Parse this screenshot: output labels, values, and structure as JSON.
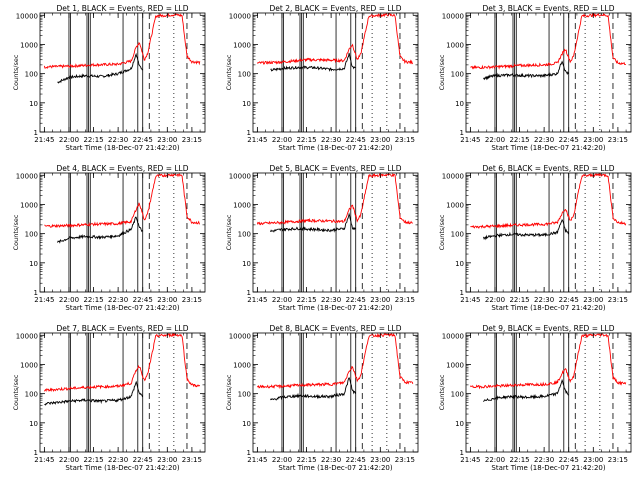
{
  "figure": {
    "xlabel": "Start Time (18-Dec-07 21:42:20)",
    "ylabel": "Counts/sec",
    "colors": {
      "events": "#000000",
      "lld": "#ff0000",
      "axes": "#000000"
    }
  },
  "chart_data": {
    "type": "line",
    "layout": "3x3 grid",
    "yscale": "log",
    "ylim": [
      1,
      12000
    ],
    "xlim": [
      "21:42:20",
      "23:23:00"
    ],
    "x_ticks": [
      "21:45",
      "22:00",
      "22:15",
      "22:30",
      "22:45",
      "23:00",
      "23:15"
    ],
    "y_ticks": [
      "1",
      "10",
      "100",
      "1000",
      "10000"
    ],
    "xlabel": "Start Time (18-Dec-07 21:42:20)",
    "ylabel": "Counts/sec",
    "solid_vertical_lines": [
      "22:00",
      "22:01",
      "22:11",
      "22:12",
      "22:13",
      "22:33",
      "22:42",
      "22:45"
    ],
    "dashed_vertical_lines": [
      "22:49",
      "23:12"
    ],
    "dotted_vertical_lines": [
      "22:55",
      "23:04"
    ],
    "panels": [
      {
        "title": "Det 1, BLACK = Events, RED = LLD",
        "series": [
          {
            "name": "BLACK = Events",
            "color": "#000000",
            "x": [
              "21:53",
              "22:00",
              "22:10",
              "22:20",
              "22:30",
              "22:38",
              "22:41",
              "22:43",
              "22:45"
            ],
            "y": [
              50,
              75,
              85,
              80,
              100,
              150,
              480,
              180,
              140
            ]
          },
          {
            "name": "RED = LLD",
            "color": "#ff0000",
            "x": [
              "21:45",
              "22:00",
              "22:15",
              "22:30",
              "22:38",
              "22:41",
              "22:43",
              "22:46",
              "22:48",
              "22:53",
              "23:05",
              "23:09",
              "23:12",
              "23:15",
              "23:20"
            ],
            "y": [
              170,
              180,
              200,
              210,
              270,
              800,
              1200,
              300,
              500,
              9500,
              10500,
              9800,
              400,
              260,
              240
            ]
          }
        ]
      },
      {
        "title": "Det 2, BLACK = Events, RED = LLD",
        "series": [
          {
            "name": "BLACK = Events",
            "color": "#000000",
            "x": [
              "21:53",
              "22:00",
              "22:10",
              "22:20",
              "22:30",
              "22:38",
              "22:41",
              "22:43",
              "22:45"
            ],
            "y": [
              130,
              150,
              165,
              160,
              140,
              150,
              480,
              170,
              150
            ]
          },
          {
            "name": "RED = LLD",
            "color": "#ff0000",
            "x": [
              "21:45",
              "22:00",
              "22:15",
              "22:30",
              "22:38",
              "22:41",
              "22:43",
              "22:46",
              "22:48",
              "22:53",
              "23:05",
              "23:09",
              "23:12",
              "23:15",
              "23:20"
            ],
            "y": [
              230,
              250,
              300,
              290,
              280,
              700,
              1000,
              300,
              450,
              9500,
              10500,
              9800,
              380,
              260,
              240
            ]
          }
        ]
      },
      {
        "title": "Det 3, BLACK = Events, RED = LLD",
        "series": [
          {
            "name": "BLACK = Events",
            "color": "#000000",
            "x": [
              "21:53",
              "22:00",
              "22:10",
              "22:20",
              "22:30",
              "22:38",
              "22:41",
              "22:43",
              "22:45"
            ],
            "y": [
              70,
              85,
              90,
              85,
              85,
              100,
              280,
              120,
              95
            ]
          },
          {
            "name": "RED = LLD",
            "color": "#ff0000",
            "x": [
              "21:45",
              "22:00",
              "22:15",
              "22:30",
              "22:38",
              "22:41",
              "22:43",
              "22:46",
              "22:48",
              "22:53",
              "23:05",
              "23:09",
              "23:12",
              "23:15",
              "23:20"
            ],
            "y": [
              160,
              170,
              190,
              200,
              230,
              480,
              700,
              260,
              400,
              9500,
              10500,
              9800,
              350,
              230,
              220
            ]
          }
        ]
      },
      {
        "title": "Det 4, BLACK = Events, RED = LLD",
        "series": [
          {
            "name": "BLACK = Events",
            "color": "#000000",
            "x": [
              "21:53",
              "22:00",
              "22:10",
              "22:20",
              "22:30",
              "22:38",
              "22:41",
              "22:43",
              "22:45"
            ],
            "y": [
              50,
              70,
              80,
              75,
              85,
              140,
              380,
              160,
              120
            ]
          },
          {
            "name": "RED = LLD",
            "color": "#ff0000",
            "x": [
              "21:45",
              "22:00",
              "22:15",
              "22:30",
              "22:38",
              "22:41",
              "22:43",
              "22:46",
              "22:48",
              "22:53",
              "23:05",
              "23:09",
              "23:12",
              "23:15",
              "23:20"
            ],
            "y": [
              180,
              190,
              210,
              220,
              260,
              700,
              1100,
              300,
              480,
              9500,
              10500,
              9800,
              400,
              250,
              230
            ]
          }
        ]
      },
      {
        "title": "Det 5, BLACK = Events, RED = LLD",
        "series": [
          {
            "name": "BLACK = Events",
            "color": "#000000",
            "x": [
              "21:53",
              "22:00",
              "22:10",
              "22:20",
              "22:30",
              "22:38",
              "22:41",
              "22:43",
              "22:45"
            ],
            "y": [
              120,
              140,
              150,
              140,
              130,
              150,
              450,
              160,
              140
            ]
          },
          {
            "name": "RED = LLD",
            "color": "#ff0000",
            "x": [
              "21:45",
              "22:00",
              "22:15",
              "22:30",
              "22:38",
              "22:41",
              "22:43",
              "22:46",
              "22:48",
              "22:53",
              "23:05",
              "23:09",
              "23:12",
              "23:15",
              "23:20"
            ],
            "y": [
              220,
              240,
              280,
              270,
              260,
              650,
              950,
              280,
              420,
              9500,
              10500,
              9800,
              370,
              250,
              230
            ]
          }
        ]
      },
      {
        "title": "Det 6, BLACK = Events, RED = LLD",
        "series": [
          {
            "name": "BLACK = Events",
            "color": "#000000",
            "x": [
              "21:53",
              "22:00",
              "22:10",
              "22:20",
              "22:30",
              "22:38",
              "22:41",
              "22:43",
              "22:45"
            ],
            "y": [
              70,
              85,
              95,
              90,
              90,
              110,
              300,
              130,
              100
            ]
          },
          {
            "name": "RED = LLD",
            "color": "#ff0000",
            "x": [
              "21:45",
              "22:00",
              "22:15",
              "22:30",
              "22:38",
              "22:41",
              "22:43",
              "22:46",
              "22:48",
              "22:53",
              "23:05",
              "23:09",
              "23:12",
              "23:15",
              "23:20"
            ],
            "y": [
              170,
              180,
              200,
              210,
              240,
              500,
              750,
              270,
              420,
              9500,
              10500,
              9800,
              360,
              240,
              220
            ]
          }
        ]
      },
      {
        "title": "Det 7, BLACK = Events, RED = LLD",
        "series": [
          {
            "name": "BLACK = Events",
            "color": "#000000",
            "x": [
              "21:45",
              "22:00",
              "22:10",
              "22:20",
              "22:30",
              "22:38",
              "22:41",
              "22:43",
              "22:45"
            ],
            "y": [
              45,
              55,
              60,
              55,
              60,
              80,
              250,
              100,
              80
            ]
          },
          {
            "name": "RED = LLD",
            "color": "#ff0000",
            "x": [
              "21:45",
              "22:00",
              "22:15",
              "22:30",
              "22:38",
              "22:41",
              "22:43",
              "22:46",
              "22:48",
              "22:53",
              "23:05",
              "23:09",
              "23:12",
              "23:15",
              "23:20"
            ],
            "y": [
              130,
              150,
              170,
              180,
              230,
              650,
              900,
              280,
              450,
              9500,
              10500,
              9800,
              320,
              200,
              180
            ]
          }
        ]
      },
      {
        "title": "Det 8, BLACK = Events, RED = LLD",
        "series": [
          {
            "name": "BLACK = Events",
            "color": "#000000",
            "x": [
              "21:53",
              "22:00",
              "22:10",
              "22:20",
              "22:30",
              "22:38",
              "22:41",
              "22:43",
              "22:45"
            ],
            "y": [
              60,
              75,
              85,
              80,
              80,
              100,
              350,
              130,
              100
            ]
          },
          {
            "name": "RED = LLD",
            "color": "#ff0000",
            "x": [
              "21:45",
              "22:00",
              "22:15",
              "22:30",
              "22:38",
              "22:41",
              "22:43",
              "22:46",
              "22:48",
              "22:53",
              "23:05",
              "23:09",
              "23:12",
              "23:15",
              "23:20"
            ],
            "y": [
              170,
              180,
              200,
              210,
              240,
              600,
              850,
              280,
              420,
              9500,
              10500,
              9800,
              380,
              250,
              230
            ]
          }
        ]
      },
      {
        "title": "Det 9, BLACK = Events, RED = LLD",
        "series": [
          {
            "name": "BLACK = Events",
            "color": "#000000",
            "x": [
              "21:53",
              "22:00",
              "22:10",
              "22:20",
              "22:30",
              "22:38",
              "22:41",
              "22:43",
              "22:45"
            ],
            "y": [
              55,
              70,
              80,
              75,
              80,
              100,
              280,
              120,
              95
            ]
          },
          {
            "name": "RED = LLD",
            "color": "#ff0000",
            "x": [
              "21:45",
              "22:00",
              "22:15",
              "22:30",
              "22:38",
              "22:41",
              "22:43",
              "22:46",
              "22:48",
              "22:53",
              "23:05",
              "23:09",
              "23:12",
              "23:15",
              "23:20"
            ],
            "y": [
              170,
              180,
              200,
              210,
              240,
              500,
              700,
              270,
              400,
              9500,
              10500,
              9800,
              360,
              240,
              220
            ]
          }
        ]
      }
    ]
  }
}
